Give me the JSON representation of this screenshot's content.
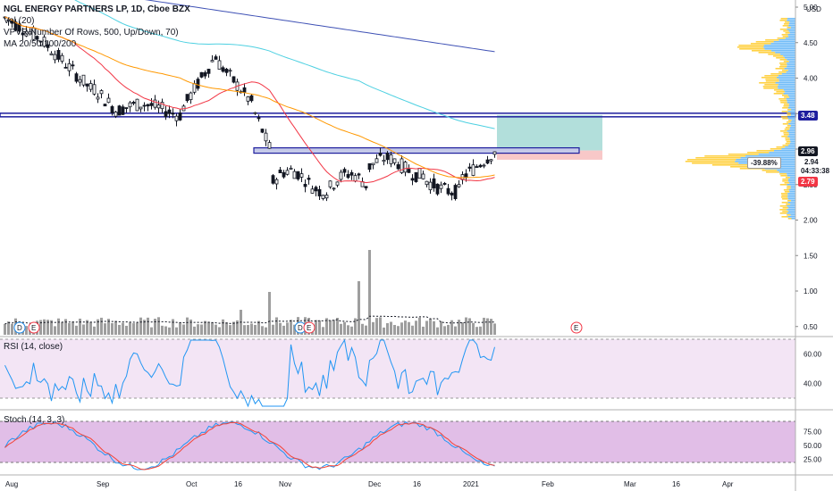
{
  "header": {
    "title": "NGL ENERGY PARTNERS LP, 1D, Cboe BZX",
    "vol_label": "Vol (20)",
    "vpvr_label": "VPVR Number Of Rows, 500, Up/Down, 70)",
    "ma_label": "MA 20/50/100/200"
  },
  "currency": "USD",
  "price_axis": {
    "ticks": [
      "5.00",
      "4.50",
      "4.00",
      "3.50",
      "3.00",
      "2.50",
      "2.00",
      "1.50",
      "1.00",
      "0.50"
    ],
    "badges": {
      "resistance": "3.48",
      "current": "2.96",
      "percent": "-39.88%",
      "cursor": "2.94",
      "countdown": "04:33:38",
      "support": "2.79"
    }
  },
  "rsi": {
    "label": "RSI (14, close)",
    "ticks": [
      "60.00",
      "40.00"
    ]
  },
  "stoch": {
    "label": "Stoch (14, 3, 3)",
    "ticks": [
      "75.00",
      "50.00",
      "25.00"
    ]
  },
  "time_axis": [
    "Aug",
    "Sep",
    "Oct",
    "16",
    "Nov",
    "Dec",
    "16",
    "2021",
    "Feb",
    "Mar",
    "16",
    "Apr"
  ],
  "event_markers": [
    "D",
    "E",
    "D",
    "E",
    "E"
  ],
  "colors": {
    "up": "#ffffff",
    "down": "#131722",
    "ma20": "#f23645",
    "ma50": "#ff9800",
    "ma100": "#4dd0e1",
    "ma200": "#3f51b5",
    "line_blue": "#1e1e9e",
    "zone_green": "#b2dfdb",
    "zone_red": "#f8c8c8",
    "rsi_bg": "#f3e5f5",
    "rsi_line": "#2196f3",
    "stoch_bg": "#e1bee7",
    "stoch_k": "#2196f3",
    "stoch_d": "#f44336",
    "vol_bar": "#9e9e9e",
    "vpvr_up": "#ffc107",
    "vpvr_down": "#42a5f5"
  }
}
